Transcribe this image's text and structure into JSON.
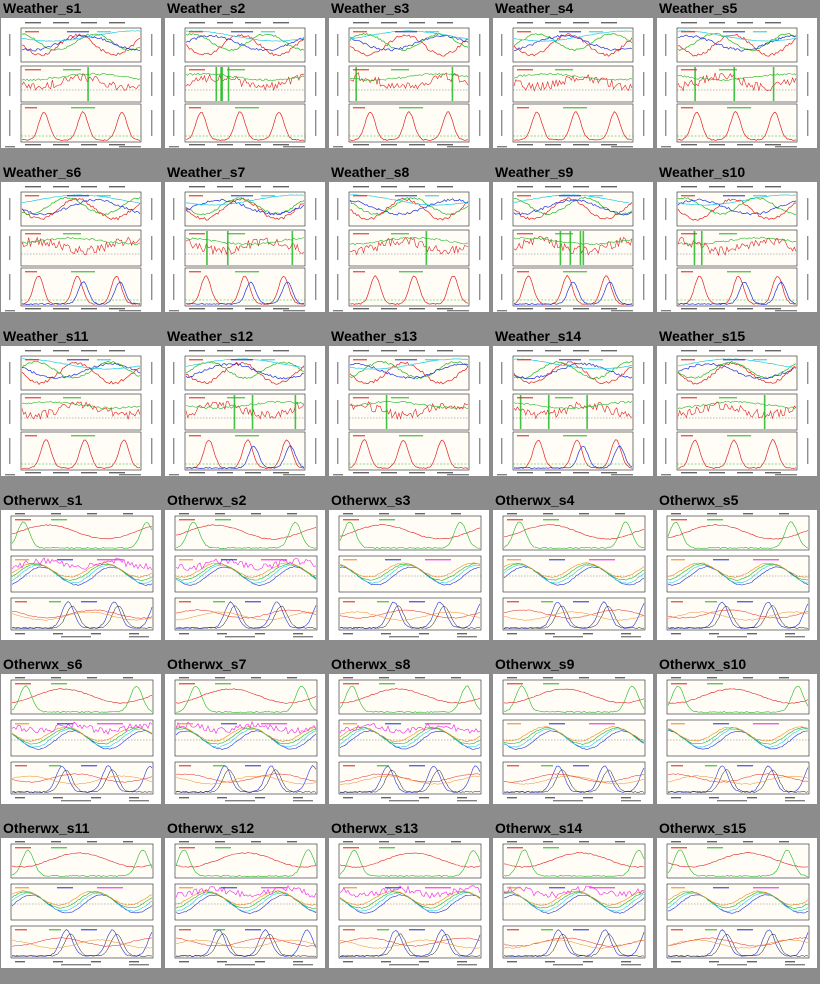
{
  "page": {
    "background": "#8c8c8c",
    "plot_colors": {
      "panel_bg": "#fffdf6",
      "frame": "#222222",
      "red": "#e22222",
      "green": "#22b822",
      "blue": "#2233dd",
      "cyan": "#22ccee",
      "magenta": "#ee22ee",
      "orange": "#f08a22",
      "black": "#111111"
    }
  },
  "gallery": {
    "groups": [
      {
        "type": "weather",
        "items": [
          "Weather_s1",
          "Weather_s2",
          "Weather_s3",
          "Weather_s4",
          "Weather_s5",
          "Weather_s6",
          "Weather_s7",
          "Weather_s8",
          "Weather_s9",
          "Weather_s10",
          "Weather_s11",
          "Weather_s12",
          "Weather_s13",
          "Weather_s14",
          "Weather_s15"
        ]
      },
      {
        "type": "otherwx",
        "items": [
          "Otherwx_s1",
          "Otherwx_s2",
          "Otherwx_s3",
          "Otherwx_s4",
          "Otherwx_s5",
          "Otherwx_s6",
          "Otherwx_s7",
          "Otherwx_s8",
          "Otherwx_s9",
          "Otherwx_s10",
          "Otherwx_s11",
          "Otherwx_s12",
          "Otherwx_s13",
          "Otherwx_s14",
          "Otherwx_s15"
        ]
      }
    ]
  }
}
